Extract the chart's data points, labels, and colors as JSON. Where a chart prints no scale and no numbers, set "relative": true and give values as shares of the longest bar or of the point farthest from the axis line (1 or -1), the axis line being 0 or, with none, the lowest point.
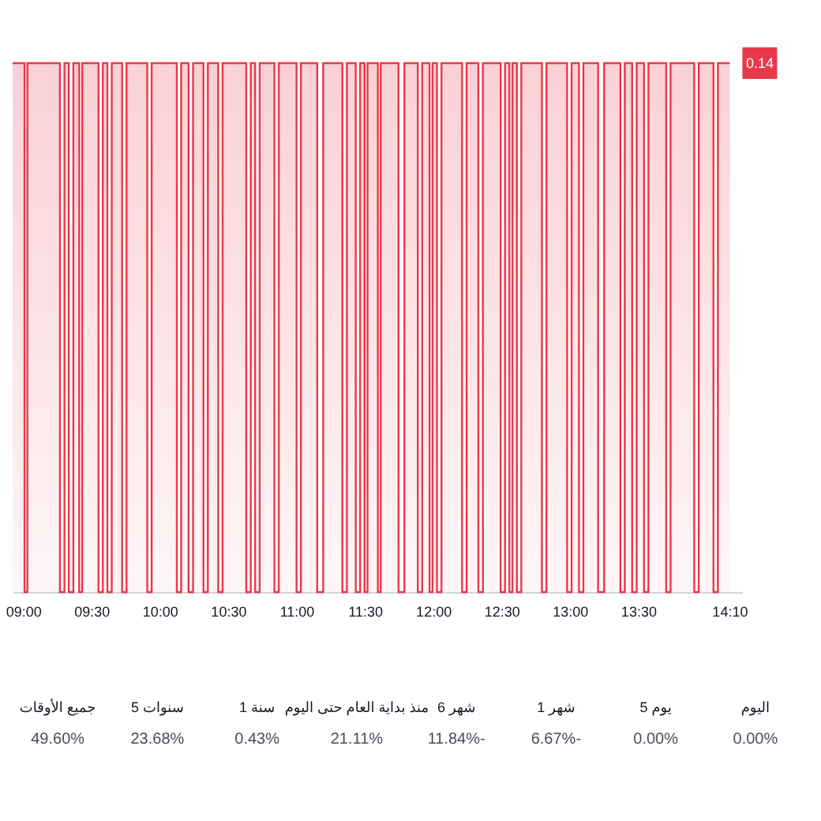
{
  "chart_data": [
    {
      "type": "step",
      "relative": true,
      "grid": false,
      "marker": "none",
      "xlim": [
        8.924,
        14.26
      ],
      "xticks": [
        {
          "value": 9,
          "label": "09:00"
        },
        {
          "value": 9.5,
          "label": "09:30"
        },
        {
          "value": 10,
          "label": "10:00"
        },
        {
          "value": 10.5,
          "label": "10:30"
        },
        {
          "value": 11,
          "label": "11:00"
        },
        {
          "value": 11.5,
          "label": "11:30"
        },
        {
          "value": 12,
          "label": "12:00"
        },
        {
          "value": 12.5,
          "label": "12:30"
        },
        {
          "value": 13,
          "label": "13:00"
        },
        {
          "value": 13.5,
          "label": "13:30"
        },
        {
          "value": 14.167,
          "label": "14:10"
        }
      ],
      "x": [
        8.924,
        9.011,
        9.032,
        9.27,
        9.303,
        9.335,
        9.368,
        9.411,
        9.433,
        9.552,
        9.584,
        9.617,
        9.649,
        9.725,
        9.757,
        9.909,
        9.941,
        10.125,
        10.157,
        10.211,
        10.244,
        10.32,
        10.352,
        10.428,
        10.46,
        10.633,
        10.666,
        10.698,
        10.731,
        10.839,
        10.871,
        11.001,
        11.033,
        11.152,
        11.196,
        11.336,
        11.369,
        11.434,
        11.466,
        11.498,
        11.52,
        11.596,
        11.617,
        11.747,
        11.79,
        11.888,
        11.92,
        11.974,
        11.996,
        12.028,
        12.061,
        12.212,
        12.245,
        12.331,
        12.364,
        12.494,
        12.526,
        12.558,
        12.58,
        12.613,
        12.645,
        12.796,
        12.829,
        12.98,
        13.013,
        13.067,
        13.099,
        13.207,
        13.251,
        13.37,
        13.402,
        13.456,
        13.489,
        13.543,
        13.575,
        13.705,
        13.737,
        13.91,
        13.943,
        14.051,
        14.083,
        14.17
      ],
      "series": [
        {
          "color": "#e8394a",
          "values": [
            1,
            0,
            1,
            0,
            1,
            0,
            1,
            0,
            1,
            0,
            1,
            0,
            1,
            0,
            1,
            0,
            1,
            0,
            1,
            0,
            1,
            0,
            1,
            0,
            1,
            0,
            1,
            0,
            1,
            0,
            1,
            0,
            1,
            0,
            1,
            0,
            1,
            0,
            1,
            0,
            1,
            0,
            1,
            0,
            1,
            0,
            1,
            0,
            1,
            0,
            1,
            0,
            1,
            0,
            1,
            0,
            1,
            0,
            1,
            0,
            1,
            0,
            1,
            0,
            1,
            0,
            1,
            0,
            1,
            0,
            1,
            0,
            1,
            0,
            1,
            0,
            1,
            0,
            1,
            0,
            1,
            1
          ]
        }
      ],
      "annotations": [
        {
          "text": "0.14",
          "x": 14.17,
          "y": 1
        }
      ]
    },
    {
      "type": "other",
      "categories": [
        "جميع الأوقات",
        "5 سنوات",
        "1 سنة",
        "منذ بداية العام حتى اليوم",
        "6 شهر",
        "1 شهر",
        "5 يوم",
        "اليوم"
      ],
      "value_labels": [
        "49.60%",
        "23.68%",
        "0.43%",
        "21.11%",
        "11.84%-",
        "6.67%-",
        "0.00%",
        "0.00%"
      ]
    }
  ]
}
